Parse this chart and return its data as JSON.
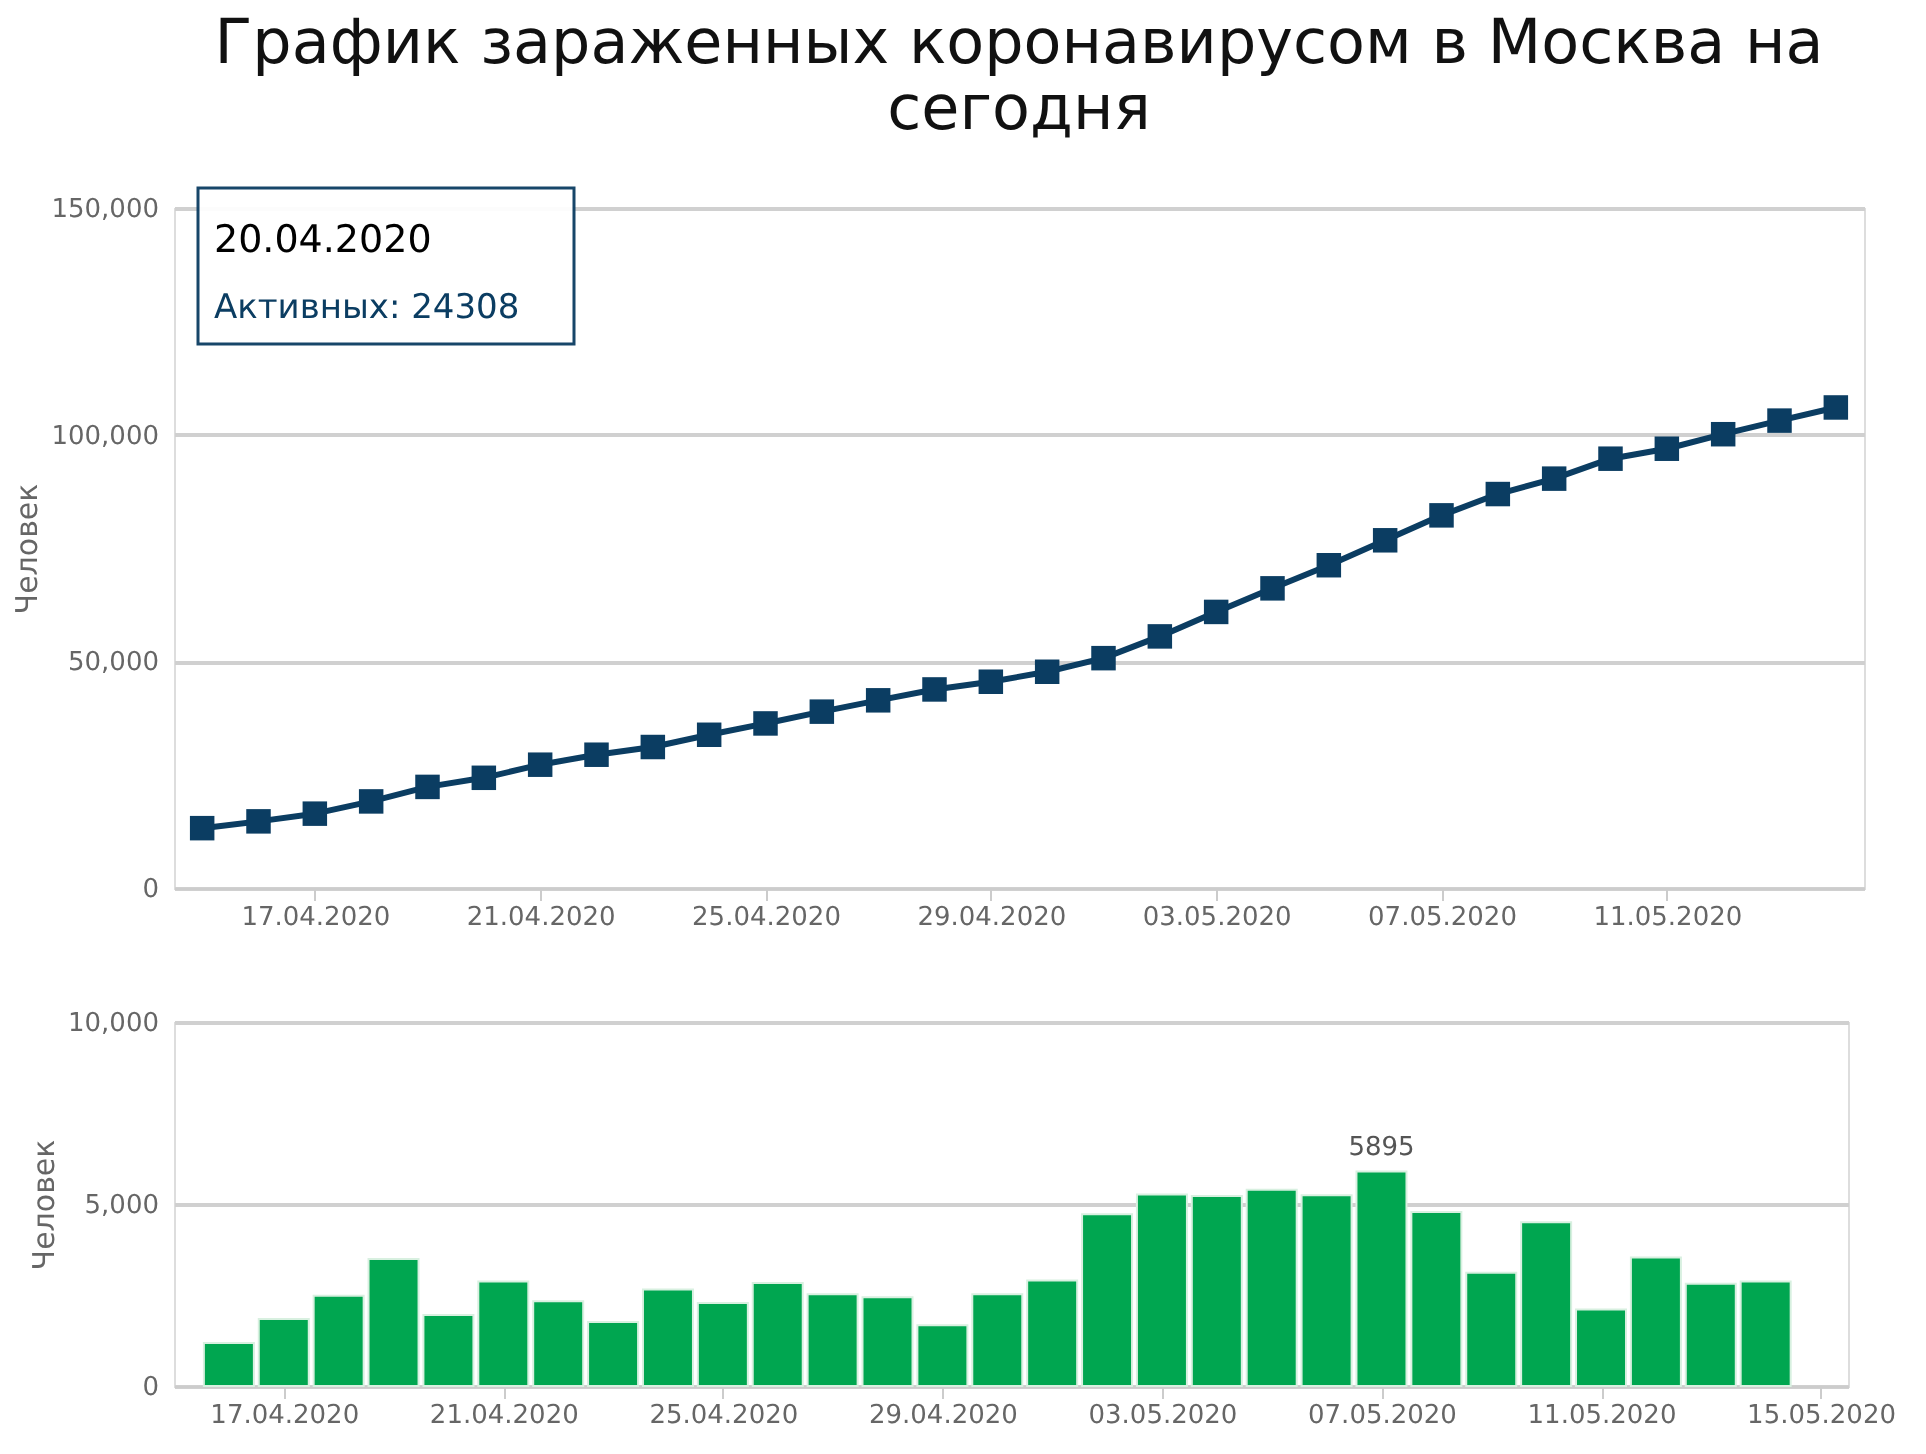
{
  "chart_data": [
    {
      "type": "line",
      "title": "График зараженных коронавирусом в Москва на сегодня",
      "ylabel": "Человек",
      "x": [
        "2020-04-15",
        "2020-04-16",
        "2020-04-17",
        "2020-04-18",
        "2020-04-19",
        "2020-04-20",
        "2020-04-21",
        "2020-04-22",
        "2020-04-23",
        "2020-04-24",
        "2020-04-25",
        "2020-04-26",
        "2020-04-27",
        "2020-04-28",
        "2020-04-29",
        "2020-04-30",
        "2020-05-01",
        "2020-05-02",
        "2020-05-03",
        "2020-05-04",
        "2020-05-05",
        "2020-05-06",
        "2020-05-07",
        "2020-05-08",
        "2020-05-09",
        "2020-05-10",
        "2020-05-11",
        "2020-05-12",
        "2020-05-13",
        "2020-05-14"
      ],
      "series": [
        {
          "color": "#0b3d62",
          "values": [
            13200,
            14700,
            16400,
            19100,
            22300,
            24308,
            27200,
            29400,
            31100,
            33800,
            36300,
            38900,
            41400,
            43800,
            45500,
            47700,
            50700,
            55500,
            60900,
            66100,
            71200,
            76700,
            82200,
            86900,
            90300,
            94700,
            96900,
            100100,
            103100,
            106000
          ]
        }
      ],
      "marker": "square",
      "line_style": "solid",
      "grid": "y",
      "legend": false,
      "xlim": [
        "2020-04-14T12:00",
        "2020-05-14T12:00"
      ],
      "xticks": [
        {
          "value": "2020-04-17",
          "label": "17.04.2020"
        },
        {
          "value": "2020-04-21",
          "label": "21.04.2020"
        },
        {
          "value": "2020-04-25",
          "label": "25.04.2020"
        },
        {
          "value": "2020-04-29",
          "label": "29.04.2020"
        },
        {
          "value": "2020-05-03",
          "label": "03.05.2020"
        },
        {
          "value": "2020-05-07",
          "label": "07.05.2020"
        },
        {
          "value": "2020-05-11",
          "label": "11.05.2020"
        }
      ],
      "ylim": [
        0,
        150000
      ],
      "yticks": [
        {
          "value": 0,
          "label": "0"
        },
        {
          "value": 50000,
          "label": "50,000"
        },
        {
          "value": 100000,
          "label": "100,000"
        },
        {
          "value": 150000,
          "label": "150,000"
        }
      ],
      "annotations": [
        "20.04.2020",
        "Активных:  24308"
      ]
    },
    {
      "type": "bar",
      "ylabel": "Человек",
      "x": [
        "2020-04-16",
        "2020-04-17",
        "2020-04-18",
        "2020-04-19",
        "2020-04-20",
        "2020-04-21",
        "2020-04-22",
        "2020-04-23",
        "2020-04-24",
        "2020-04-25",
        "2020-04-26",
        "2020-04-27",
        "2020-04-28",
        "2020-04-29",
        "2020-04-30",
        "2020-05-01",
        "2020-05-02",
        "2020-05-03",
        "2020-05-04",
        "2020-05-05",
        "2020-05-06",
        "2020-05-07",
        "2020-05-08",
        "2020-05-09",
        "2020-05-10",
        "2020-05-11",
        "2020-05-12",
        "2020-05-13",
        "2020-05-14"
      ],
      "values": [
        1180,
        1840,
        2480,
        3490,
        1950,
        2870,
        2330,
        1760,
        2650,
        2280,
        2830,
        2520,
        2440,
        1670,
        2520,
        2900,
        4720,
        5260,
        5220,
        5390,
        5240,
        5895,
        4780,
        3110,
        4500,
        2100,
        3530,
        2810,
        2870
      ],
      "value_labels": [
        null,
        null,
        null,
        null,
        null,
        null,
        null,
        null,
        null,
        null,
        null,
        null,
        null,
        null,
        null,
        null,
        null,
        null,
        null,
        null,
        null,
        "5895",
        null,
        null,
        null,
        null,
        null,
        null,
        null
      ],
      "color": "#00a650",
      "grid": "y",
      "legend": false,
      "xlim": [
        "2020-04-15",
        "2020-05-15T12:00"
      ],
      "xticks": [
        {
          "value": "2020-04-17",
          "label": "17.04.2020"
        },
        {
          "value": "2020-04-21",
          "label": "21.04.2020"
        },
        {
          "value": "2020-04-25",
          "label": "25.04.2020"
        },
        {
          "value": "2020-04-29",
          "label": "29.04.2020"
        },
        {
          "value": "2020-05-03",
          "label": "03.05.2020"
        },
        {
          "value": "2020-05-07",
          "label": "07.05.2020"
        },
        {
          "value": "2020-05-11",
          "label": "11.05.2020"
        },
        {
          "value": "2020-05-15",
          "label": "15.05.2020"
        }
      ],
      "ylim": [
        0,
        10000
      ],
      "yticks": [
        {
          "value": 0,
          "label": "0"
        },
        {
          "value": 5000,
          "label": "5,000"
        },
        {
          "value": 10000,
          "label": "10,000"
        }
      ]
    }
  ]
}
